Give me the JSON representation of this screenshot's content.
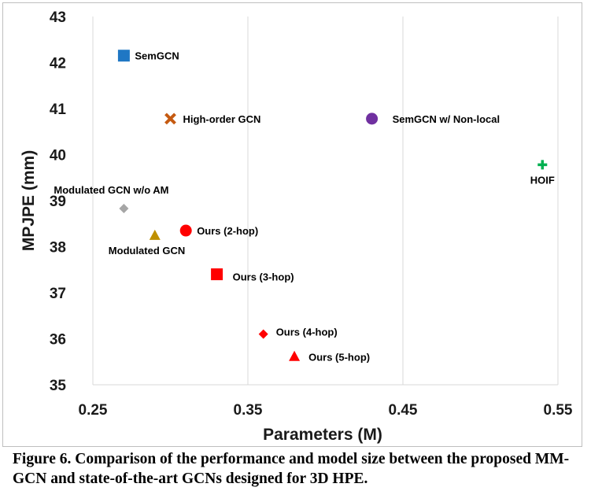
{
  "chart_data": {
    "type": "scatter",
    "xlabel": "Parameters (M)",
    "ylabel": "MPJPE (mm)",
    "xlim": [
      0.25,
      0.55
    ],
    "ylim": [
      35,
      43
    ],
    "xticks": [
      "0.25",
      "0.35",
      "0.45",
      "0.55"
    ],
    "yticks": [
      "35",
      "36",
      "37",
      "38",
      "39",
      "40",
      "41",
      "42",
      "43"
    ],
    "grid": "vertical",
    "points": [
      {
        "name": "SemGCN",
        "x": 0.27,
        "y": 42.15,
        "marker": "square",
        "color": "#1f77c4"
      },
      {
        "name": "High-order GCN",
        "x": 0.3,
        "y": 40.78,
        "marker": "x",
        "color": "#c55a11"
      },
      {
        "name": "SemGCN w/ Non-local",
        "x": 0.43,
        "y": 40.78,
        "marker": "circle",
        "color": "#7030a0"
      },
      {
        "name": "HOIF",
        "x": 0.54,
        "y": 39.78,
        "marker": "plus",
        "color": "#00b050"
      },
      {
        "name": "Modulated GCN w/o AM",
        "x": 0.27,
        "y": 38.83,
        "marker": "diamond",
        "color": "#a6a6a6"
      },
      {
        "name": "Modulated GCN",
        "x": 0.29,
        "y": 38.25,
        "marker": "triangle",
        "color": "#bf9000"
      },
      {
        "name": "Ours (2-hop)",
        "x": 0.31,
        "y": 38.35,
        "marker": "circle",
        "color": "#ff0000"
      },
      {
        "name": "Ours (3-hop)",
        "x": 0.33,
        "y": 37.4,
        "marker": "square",
        "color": "#ff0000"
      },
      {
        "name": "Ours (4-hop)",
        "x": 0.36,
        "y": 36.1,
        "marker": "diamond",
        "color": "#ff0000"
      },
      {
        "name": "Ours (5-hop)",
        "x": 0.38,
        "y": 35.62,
        "marker": "triangle",
        "color": "#ff0000"
      }
    ]
  },
  "caption": "Figure 6. Comparison of the performance and model size between the proposed MM-GCN and state-of-the-art GCNs designed for 3D HPE."
}
